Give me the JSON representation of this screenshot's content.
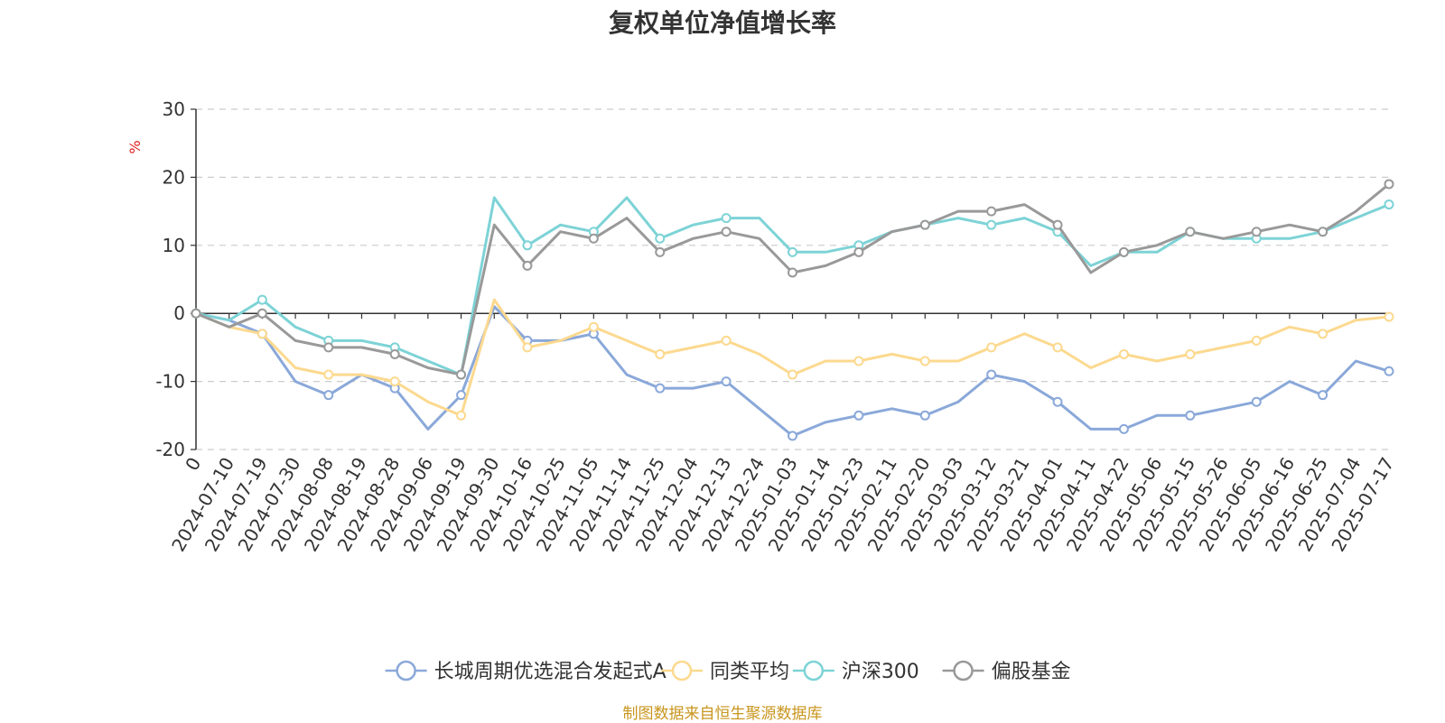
{
  "title": "复权单位净值增长率",
  "footer": "制图数据来自恒生聚源数据库",
  "colors": {
    "fund": "#8aa8d9",
    "peer": "#fcd98f",
    "hs300": "#7dd3d6",
    "equity": "#999999",
    "unit": "#e02020",
    "axis": "#333333",
    "grid": "#cccccc"
  },
  "chart_data": {
    "type": "line",
    "ylabel": "%",
    "ylim": [
      -20,
      30
    ],
    "yticks": [
      30,
      20,
      10,
      0,
      -10,
      -20
    ],
    "grid": "horizontal-dashed",
    "legend_position": "bottom-center",
    "xticks": [
      "0",
      "2024-07-10",
      "2024-07-19",
      "2024-07-30",
      "2024-08-08",
      "2024-08-19",
      "2024-08-28",
      "2024-09-06",
      "2024-09-19",
      "2024-09-30",
      "2024-10-16",
      "2024-10-25",
      "2024-11-05",
      "2024-11-14",
      "2024-11-25",
      "2024-12-04",
      "2024-12-13",
      "2024-12-24",
      "2025-01-03",
      "2025-01-14",
      "2025-01-23",
      "2025-02-11",
      "2025-02-20",
      "2025-03-03",
      "2025-03-12",
      "2025-03-21",
      "2025-04-01",
      "2025-04-11",
      "2025-04-22",
      "2025-05-06",
      "2025-05-15",
      "2025-05-26",
      "2025-06-05",
      "2025-06-16",
      "2025-06-25",
      "2025-07-04",
      "2025-07-17"
    ],
    "x": [
      "0",
      "2024-07-10",
      "2024-07-19",
      "2024-07-30",
      "2024-08-08",
      "2024-08-19",
      "2024-08-28",
      "2024-09-06",
      "2024-09-19",
      "2024-09-30",
      "2024-10-16",
      "2024-10-25",
      "2024-11-05",
      "2024-11-14",
      "2024-11-25",
      "2024-12-04",
      "2024-12-13",
      "2024-12-24",
      "2025-01-03",
      "2025-01-14",
      "2025-01-23",
      "2025-02-11",
      "2025-02-20",
      "2025-03-03",
      "2025-03-12",
      "2025-03-21",
      "2025-04-01",
      "2025-04-11",
      "2025-04-22",
      "2025-05-06",
      "2025-05-15",
      "2025-05-26",
      "2025-06-05",
      "2025-06-16",
      "2025-06-25",
      "2025-07-04",
      "2025-07-17"
    ],
    "series": [
      {
        "name": "长城周期优选混合发起式A",
        "color": "#8aa8d9",
        "values": [
          0,
          -1,
          -3,
          -10,
          -12,
          -9,
          -11,
          -17,
          -12,
          1,
          -4,
          -4,
          -3,
          -9,
          -11,
          -11,
          -10,
          -14,
          -18,
          -16,
          -15,
          -14,
          -15,
          -13,
          -9,
          -10,
          -13,
          -17,
          -17,
          -15,
          -15,
          -14,
          -13,
          -10,
          -12,
          -7,
          -8.5
        ]
      },
      {
        "name": "同类平均",
        "color": "#fcd98f",
        "values": [
          0,
          -2,
          -3,
          -8,
          -9,
          -9,
          -10,
          -13,
          -15,
          2,
          -5,
          -4,
          -2,
          -4,
          -6,
          -5,
          -4,
          -6,
          -9,
          -7,
          -7,
          -6,
          -7,
          -7,
          -5,
          -3,
          -5,
          -8,
          -6,
          -7,
          -6,
          -5,
          -4,
          -2,
          -3,
          -1,
          -0.5
        ]
      },
      {
        "name": "沪深300",
        "color": "#7dd3d6",
        "values": [
          0,
          -1,
          2,
          -2,
          -4,
          -4,
          -5,
          -7,
          -9,
          17,
          10,
          13,
          12,
          17,
          11,
          13,
          14,
          14,
          9,
          9,
          10,
          12,
          13,
          14,
          13,
          14,
          12,
          7,
          9,
          9,
          12,
          11,
          11,
          11,
          12,
          14,
          16
        ]
      },
      {
        "name": "偏股基金",
        "color": "#999999",
        "values": [
          0,
          -2,
          0,
          -4,
          -5,
          -5,
          -6,
          -8,
          -9,
          13,
          7,
          12,
          11,
          14,
          9,
          11,
          12,
          11,
          6,
          7,
          9,
          12,
          13,
          15,
          15,
          16,
          13,
          6,
          9,
          10,
          12,
          11,
          12,
          13,
          12,
          15,
          19
        ]
      }
    ]
  },
  "legend": [
    {
      "label": "长城周期优选混合发起式A",
      "color": "#8aa8d9"
    },
    {
      "label": "同类平均",
      "color": "#fcd98f"
    },
    {
      "label": "沪深300",
      "color": "#7dd3d6"
    },
    {
      "label": "偏股基金",
      "color": "#999999"
    }
  ]
}
